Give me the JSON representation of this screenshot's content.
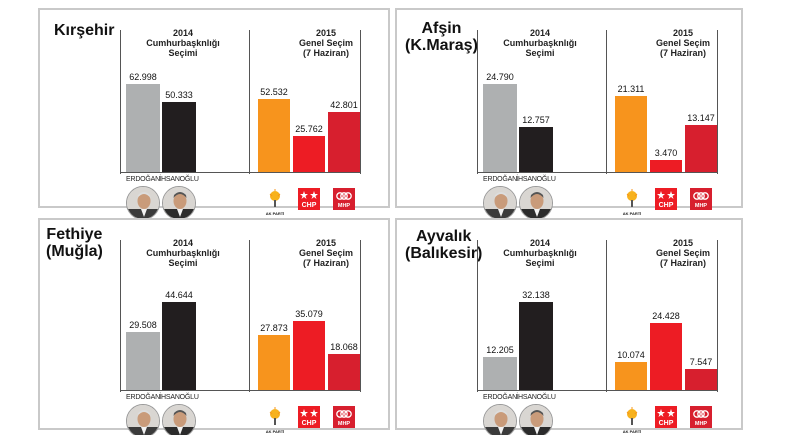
{
  "colors": {
    "erdogan": "#aeb0b1",
    "ihsanoglu": "#221e1f",
    "akp": "#f7941d",
    "chp": "#ed1c24",
    "mhp": "#d71f2e"
  },
  "labels": {
    "section_2014": [
      "2014",
      "Cumhurbaşknlığı",
      "Seçimi"
    ],
    "section_2015": [
      "2015",
      "Genel Seçim",
      "(7 Haziran)"
    ],
    "erdogan": "ERDOĞAN",
    "ihsanoglu": "İHSANOĞLU",
    "akp_logo": "AK PARTİ",
    "chp_logo": "CHP",
    "mhp_logo": "MHP"
  },
  "icons": [
    "erdogan-portrait-icon",
    "ihsanoglu-portrait-icon",
    "akp-logo-icon",
    "chp-logo-icon",
    "mhp-logo-icon"
  ],
  "panels": [
    {
      "region": [
        "Kırşehir"
      ],
      "presidential": {
        "erdogan": "62.998",
        "ihsanoglu": "50.333"
      },
      "general": {
        "akp": "52.532",
        "chp": "25.762",
        "mhp": "42.801"
      }
    },
    {
      "region": [
        "Afşin",
        "(K.Maraş)"
      ],
      "presidential": {
        "erdogan": "24.790",
        "ihsanoglu": "12.757"
      },
      "general": {
        "akp": "21.311",
        "chp": "3.470",
        "mhp": "13.147"
      }
    },
    {
      "region": [
        "Fethiye",
        "(Muğla)"
      ],
      "presidential": {
        "erdogan": "29.508",
        "ihsanoglu": "44.644"
      },
      "general": {
        "akp": "27.873",
        "chp": "35.079",
        "mhp": "18.068"
      }
    },
    {
      "region": [
        "Ayvalık",
        "(Balıkesir)"
      ],
      "presidential": {
        "erdogan": "12.205",
        "ihsanoglu": "32.138"
      },
      "general": {
        "akp": "10.074",
        "chp": "24.428",
        "mhp": "7.547"
      }
    }
  ],
  "chart_data": [
    {
      "type": "bar",
      "title": "Kırşehir",
      "charts": [
        {
          "title": "2014 Cumhurbaşknlığı Seçimi",
          "categories": [
            "ERDOĞAN",
            "İHSANOĞLU"
          ],
          "values": [
            62998,
            50333
          ]
        },
        {
          "title": "2015 Genel Seçim (7 Haziran)",
          "categories": [
            "AK PARTİ",
            "CHP",
            "MHP"
          ],
          "values": [
            52532,
            25762,
            42801
          ]
        }
      ]
    },
    {
      "type": "bar",
      "title": "Afşin (K.Maraş)",
      "charts": [
        {
          "title": "2014 Cumhurbaşknlığı Seçimi",
          "categories": [
            "ERDOĞAN",
            "İHSANOĞLU"
          ],
          "values": [
            24790,
            12757
          ]
        },
        {
          "title": "2015 Genel Seçim (7 Haziran)",
          "categories": [
            "AK PARTİ",
            "CHP",
            "MHP"
          ],
          "values": [
            21311,
            3470,
            13147
          ]
        }
      ]
    },
    {
      "type": "bar",
      "title": "Fethiye (Muğla)",
      "charts": [
        {
          "title": "2014 Cumhurbaşknlığı Seçimi",
          "categories": [
            "ERDOĞAN",
            "İHSANOĞLU"
          ],
          "values": [
            29508,
            44644
          ]
        },
        {
          "title": "2015 Genel Seçim (7 Haziran)",
          "categories": [
            "AK PARTİ",
            "CHP",
            "MHP"
          ],
          "values": [
            27873,
            35079,
            18068
          ]
        }
      ]
    },
    {
      "type": "bar",
      "title": "Ayvalık (Balıkesir)",
      "charts": [
        {
          "title": "2014 Cumhurbaşknlığı Seçimi",
          "categories": [
            "ERDOĞAN",
            "İHSANOĞLU"
          ],
          "values": [
            12205,
            32138
          ]
        },
        {
          "title": "2015 Genel Seçim (7 Haziran)",
          "categories": [
            "AK PARTİ",
            "CHP",
            "MHP"
          ],
          "values": [
            10074,
            24428,
            7547
          ]
        }
      ]
    }
  ]
}
